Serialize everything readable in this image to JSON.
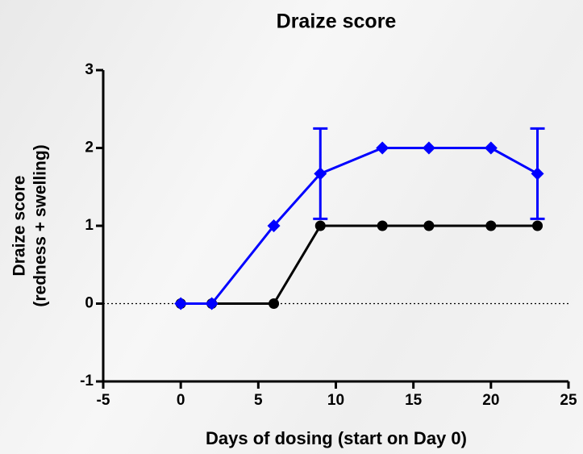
{
  "chart_data": {
    "type": "line",
    "title": "Draize score",
    "xlabel": "Days of dosing (start on Day 0)",
    "ylabel": [
      "Draize score",
      "(redness + swelling)"
    ],
    "x": [
      0,
      2,
      6,
      9,
      13,
      16,
      20,
      23
    ],
    "series": [
      {
        "color": "#000000",
        "marker": "circle",
        "values": [
          0,
          0,
          0,
          1,
          1,
          1,
          1,
          1
        ]
      },
      {
        "color": "#0000ff",
        "marker": "diamond",
        "values": [
          0,
          0,
          1,
          1.67,
          2,
          2,
          2,
          1.67
        ],
        "errors": [
          null,
          null,
          null,
          0.58,
          null,
          null,
          null,
          0.58
        ]
      }
    ],
    "xlim": [
      -5,
      25
    ],
    "xticks": [
      -5,
      0,
      5,
      10,
      15,
      20,
      25
    ],
    "ylim": [
      -1,
      3
    ],
    "yticks": [
      -1,
      0,
      1,
      2,
      3
    ],
    "reference_line": 0
  }
}
